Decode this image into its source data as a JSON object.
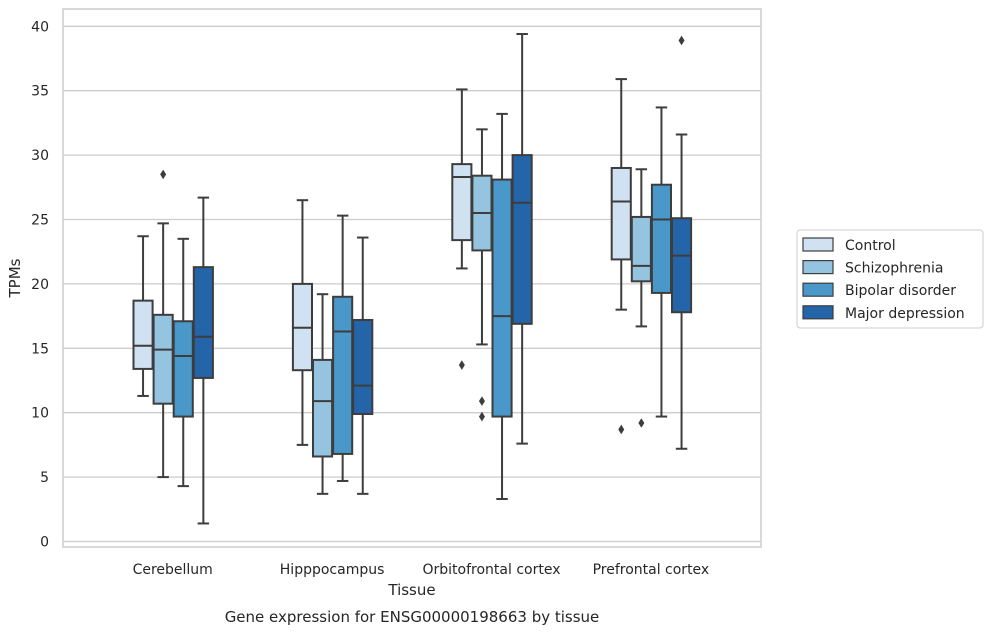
{
  "chart_data": {
    "type": "box",
    "xlabel": "Tissue",
    "ylabel": "TPMs",
    "caption": "Gene expression for ENSG00000198663 by tissue",
    "ylim": [
      -0.5,
      41.3
    ],
    "yticks": [
      0,
      5,
      10,
      15,
      20,
      25,
      30,
      35,
      40
    ],
    "categories": [
      "Cerebellum",
      "Hipppocampus",
      "Orbitofrontal cortex",
      "Prefrontal cortex"
    ],
    "grid": true,
    "legend_position": "right",
    "colors": [
      "#d0e1f2",
      "#94c4df",
      "#4a98c9",
      "#2464a8"
    ],
    "series": [
      {
        "name": "Control",
        "boxes": [
          {
            "whisker_low": 11.3,
            "q1": 13.4,
            "median": 15.2,
            "q3": 18.7,
            "whisker_high": 23.7,
            "outliers": []
          },
          {
            "whisker_low": 7.5,
            "q1": 13.3,
            "median": 16.6,
            "q3": 20.0,
            "whisker_high": 26.5,
            "outliers": []
          },
          {
            "whisker_low": 21.2,
            "q1": 23.4,
            "median": 28.3,
            "q3": 29.3,
            "whisker_high": 35.1,
            "outliers": [
              13.7
            ]
          },
          {
            "whisker_low": 18.0,
            "q1": 21.9,
            "median": 26.4,
            "q3": 29.0,
            "whisker_high": 35.9,
            "outliers": [
              8.7
            ]
          }
        ]
      },
      {
        "name": "Schizophrenia",
        "boxes": [
          {
            "whisker_low": 5.0,
            "q1": 10.7,
            "median": 14.9,
            "q3": 17.6,
            "whisker_high": 24.7,
            "outliers": [
              28.5
            ]
          },
          {
            "whisker_low": 3.7,
            "q1": 6.6,
            "median": 10.9,
            "q3": 14.1,
            "whisker_high": 19.2,
            "outliers": []
          },
          {
            "whisker_low": 15.3,
            "q1": 22.6,
            "median": 25.5,
            "q3": 28.4,
            "whisker_high": 32.0,
            "outliers": [
              10.9,
              9.7
            ]
          },
          {
            "whisker_low": 16.7,
            "q1": 20.2,
            "median": 21.4,
            "q3": 25.2,
            "whisker_high": 28.9,
            "outliers": [
              9.2
            ]
          }
        ]
      },
      {
        "name": "Bipolar disorder",
        "boxes": [
          {
            "whisker_low": 4.3,
            "q1": 9.7,
            "median": 14.4,
            "q3": 17.1,
            "whisker_high": 23.5,
            "outliers": []
          },
          {
            "whisker_low": 4.7,
            "q1": 6.8,
            "median": 16.3,
            "q3": 19.0,
            "whisker_high": 25.3,
            "outliers": []
          },
          {
            "whisker_low": 3.3,
            "q1": 9.7,
            "median": 17.5,
            "q3": 28.1,
            "whisker_high": 33.2,
            "outliers": []
          },
          {
            "whisker_low": 9.7,
            "q1": 19.3,
            "median": 25.0,
            "q3": 27.7,
            "whisker_high": 33.7,
            "outliers": []
          }
        ]
      },
      {
        "name": "Major depression",
        "boxes": [
          {
            "whisker_low": 1.4,
            "q1": 12.7,
            "median": 15.9,
            "q3": 21.3,
            "whisker_high": 26.7,
            "outliers": []
          },
          {
            "whisker_low": 3.7,
            "q1": 9.9,
            "median": 12.1,
            "q3": 17.2,
            "whisker_high": 23.6,
            "outliers": []
          },
          {
            "whisker_low": 7.6,
            "q1": 16.9,
            "median": 26.3,
            "q3": 30.0,
            "whisker_high": 39.4,
            "outliers": []
          },
          {
            "whisker_low": 7.2,
            "q1": 17.8,
            "median": 22.2,
            "q3": 25.1,
            "whisker_high": 31.6,
            "outliers": [
              38.9
            ]
          }
        ]
      }
    ]
  }
}
